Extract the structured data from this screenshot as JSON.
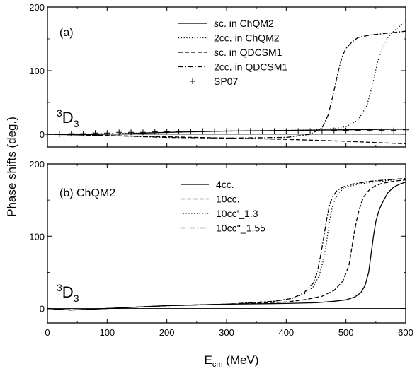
{
  "figure": {
    "ylabel": "Phase shifts (deg.)",
    "xlabel_main": "E",
    "xlabel_sub": "cm",
    "xlabel_unit": " (MeV)"
  },
  "chart_data": [
    {
      "type": "line",
      "panel_label": "(a)",
      "state_sup": "3",
      "state_main": "D",
      "state_sub": "3",
      "xlim": [
        0,
        600
      ],
      "ylim": [
        -20,
        200
      ],
      "y_ticks": [
        0,
        100,
        200
      ],
      "x_ticks": [
        0,
        100,
        200,
        300,
        400,
        500,
        600
      ],
      "legend_position": "top-right",
      "series": [
        {
          "name": "sc. in ChQM2",
          "style": "solid",
          "x": [
            0,
            50,
            100,
            200,
            300,
            400,
            500,
            600
          ],
          "y": [
            0,
            -1,
            0,
            3,
            5,
            6,
            7,
            8
          ]
        },
        {
          "name": "2cc. in ChQM2",
          "style": "dotted",
          "x": [
            0,
            100,
            200,
            300,
            400,
            450,
            480,
            500,
            520,
            535,
            545,
            552,
            560,
            570,
            580,
            590,
            600
          ],
          "y": [
            0,
            1,
            3,
            5,
            6,
            7,
            9,
            12,
            22,
            45,
            80,
            110,
            135,
            152,
            162,
            170,
            178
          ]
        },
        {
          "name": "sc. in QDCSM1",
          "style": "dashed",
          "x": [
            0,
            100,
            200,
            300,
            400,
            500,
            600
          ],
          "y": [
            0,
            -2,
            -4,
            -6,
            -8,
            -11,
            -15
          ]
        },
        {
          "name": "2cc. in QDCSM1",
          "style": "dashdot",
          "x": [
            0,
            100,
            200,
            300,
            400,
            440,
            460,
            470,
            478,
            485,
            490,
            495,
            500,
            510,
            520,
            540,
            560,
            580,
            600
          ],
          "y": [
            0,
            -2,
            -5,
            -6,
            -5,
            0,
            10,
            30,
            60,
            90,
            110,
            125,
            135,
            145,
            152,
            156,
            158,
            160,
            162
          ]
        },
        {
          "name": "SP07",
          "style": "plus",
          "x": [
            0,
            20,
            40,
            60,
            80,
            100,
            120,
            140,
            160,
            180,
            200,
            220,
            240,
            260,
            280,
            300,
            320,
            340,
            360,
            380,
            400,
            420,
            440,
            460,
            480,
            500,
            520,
            540,
            560,
            580,
            600
          ],
          "y": [
            0,
            0,
            1,
            1,
            2,
            2,
            3,
            3,
            3,
            4,
            4,
            4,
            4,
            5,
            5,
            5,
            5,
            5,
            5,
            5,
            5,
            5,
            5,
            5,
            6,
            6,
            6,
            6,
            6,
            6,
            7
          ]
        }
      ]
    },
    {
      "type": "line",
      "panel_label": "(b) ChQM2",
      "state_sup": "3",
      "state_main": "D",
      "state_sub": "3",
      "xlim": [
        0,
        600
      ],
      "ylim": [
        -20,
        200
      ],
      "y_ticks": [
        0,
        100,
        200
      ],
      "x_ticks": [
        0,
        100,
        200,
        300,
        400,
        500,
        600
      ],
      "x_tick_labels": [
        "0",
        "100",
        "200",
        "300",
        "400",
        "500",
        "600"
      ],
      "legend_position": "top-center",
      "series": [
        {
          "name": "4cc.",
          "style": "solid",
          "x": [
            0,
            40,
            100,
            200,
            300,
            400,
            450,
            480,
            500,
            515,
            525,
            532,
            538,
            542,
            546,
            550,
            555,
            560,
            570,
            580,
            590,
            600
          ],
          "y": [
            0,
            -2,
            0,
            4,
            6,
            7,
            8,
            10,
            12,
            16,
            22,
            32,
            50,
            75,
            100,
            120,
            135,
            145,
            160,
            168,
            172,
            175
          ]
        },
        {
          "name": "10cc.",
          "style": "dashed",
          "x": [
            0,
            40,
            100,
            200,
            300,
            400,
            430,
            460,
            480,
            495,
            505,
            510,
            515,
            520,
            525,
            530,
            540,
            550,
            560,
            580,
            600
          ],
          "y": [
            0,
            -2,
            0,
            4,
            6,
            9,
            12,
            17,
            25,
            38,
            60,
            85,
            110,
            130,
            145,
            155,
            165,
            170,
            173,
            176,
            178
          ]
        },
        {
          "name": "10cc'_1.3",
          "style": "dotted",
          "x": [
            0,
            40,
            100,
            200,
            300,
            380,
            410,
            430,
            445,
            455,
            463,
            468,
            472,
            477,
            482,
            490,
            500,
            520,
            550,
            580,
            600
          ],
          "y": [
            0,
            -2,
            0,
            4,
            6,
            10,
            14,
            20,
            30,
            45,
            70,
            95,
            120,
            140,
            152,
            162,
            168,
            172,
            175,
            178,
            180
          ]
        },
        {
          "name": "10cc''_1.55",
          "style": "dashdot",
          "x": [
            0,
            40,
            100,
            200,
            300,
            380,
            410,
            430,
            445,
            452,
            458,
            463,
            468,
            473,
            478,
            485,
            495,
            510,
            540,
            570,
            600
          ],
          "y": [
            0,
            -2,
            0,
            4,
            6,
            10,
            14,
            22,
            35,
            50,
            75,
            100,
            125,
            145,
            155,
            163,
            168,
            172,
            176,
            178,
            180
          ]
        }
      ]
    }
  ]
}
